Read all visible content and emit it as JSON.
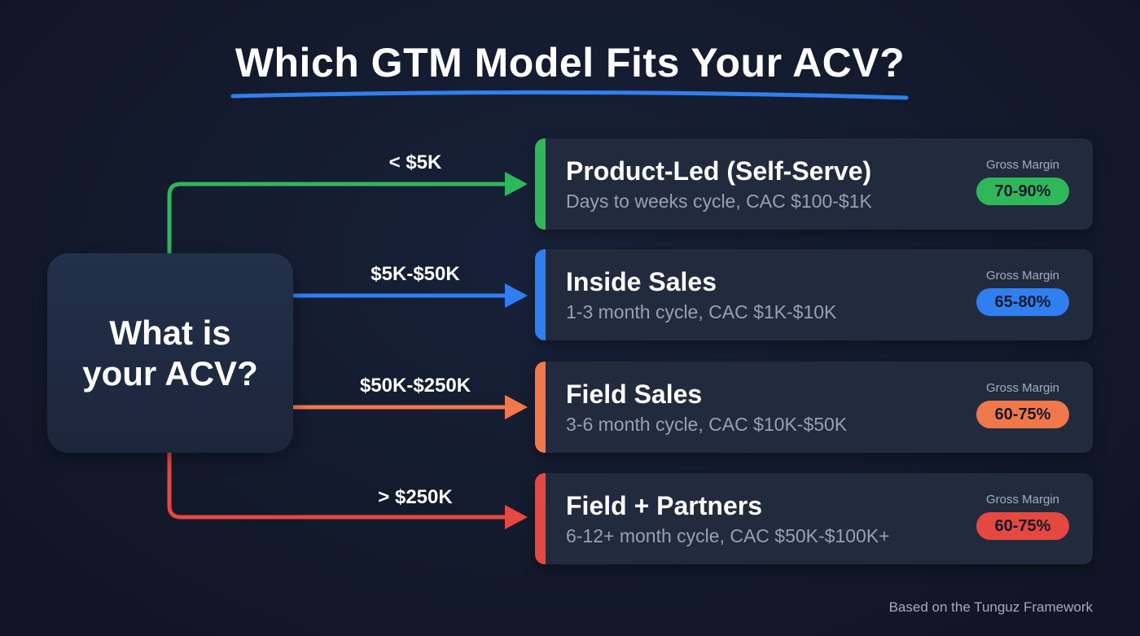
{
  "title": "Which GTM Model Fits Your ACV?",
  "question": {
    "line1": "What is",
    "line2": "your ACV?"
  },
  "branches": [
    {
      "range": "< $5K",
      "name": "Product-Led (Self-Serve)",
      "detail": "Days to weeks cycle, CAC $100-$1K",
      "margin_label": "Gross Margin",
      "margin": "70-90%",
      "color": "#2fb85a"
    },
    {
      "range": "$5K-$50K",
      "name": "Inside Sales",
      "detail": "1-3 month cycle, CAC $1K-$10K",
      "margin_label": "Gross Margin",
      "margin": "65-80%",
      "color": "#2f7ff0"
    },
    {
      "range": "$50K-$250K",
      "name": "Field Sales",
      "detail": "3-6 month cycle, CAC $10K-$50K",
      "margin_label": "Gross Margin",
      "margin": "60-75%",
      "color": "#f0784a"
    },
    {
      "range": "> $250K",
      "name": "Field + Partners",
      "detail": "6-12+ month cycle, CAC $50K-$100K+",
      "margin_label": "Gross Margin",
      "margin": "60-75%",
      "color": "#e5483f"
    }
  ],
  "footer": "Based on the Tunguz Framework",
  "accent": "#2f7ff0"
}
